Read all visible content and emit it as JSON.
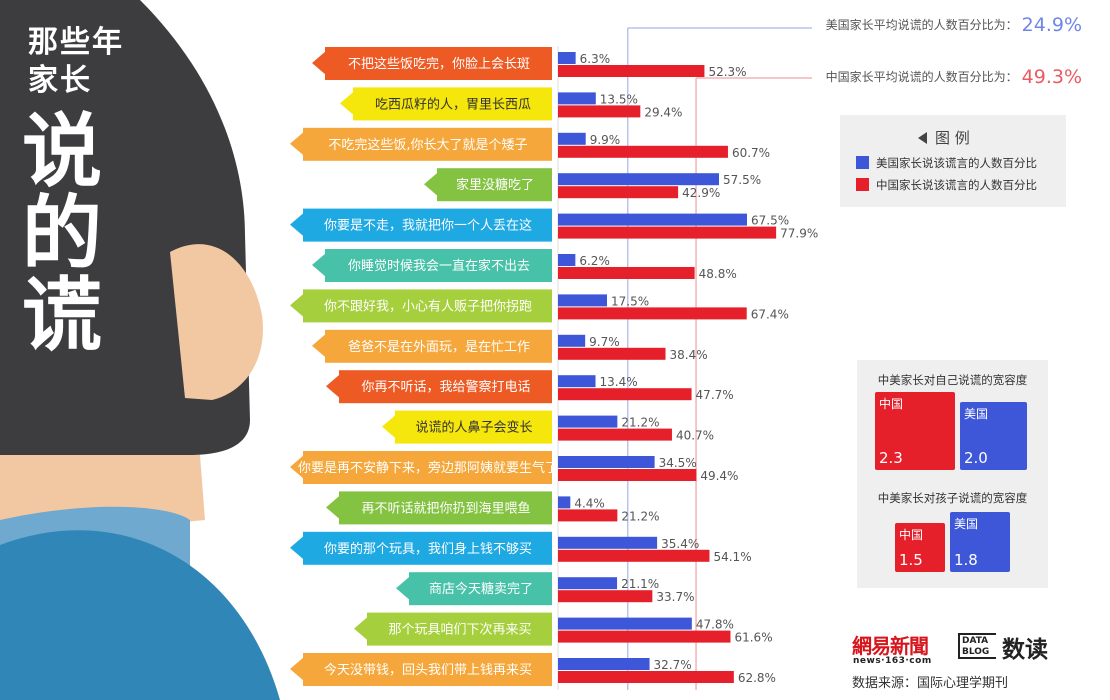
{
  "title": {
    "line1": "那些年",
    "line2": "家长",
    "big1": "说",
    "big2": "的",
    "big3": "谎"
  },
  "averages": {
    "us_label": "美国家长平均说谎的人数百分比为：",
    "us_value": "24.9%",
    "cn_label": "中国家长平均说谎的人数百分比为：",
    "cn_value": "49.3%"
  },
  "legend": {
    "title": "图 例",
    "us": "美国家长说该谎言的人数百分比",
    "cn": "中国家长说该谎言的人数百分比"
  },
  "tolerance": {
    "self_title": "中美家长对自己说谎的宽容度",
    "self": [
      {
        "name": "中国",
        "value": "2.3"
      },
      {
        "name": "美国",
        "value": "2.0"
      }
    ],
    "child_title": "中美家长对孩子说谎的宽容度",
    "child": [
      {
        "name": "中国",
        "value": "1.5"
      },
      {
        "name": "美国",
        "value": "1.8"
      }
    ]
  },
  "branding": {
    "netease": "網易新聞",
    "netease_url": "news·163·com",
    "datablog": "DATA BLOG",
    "shudu": "数读",
    "source": "数据来源：国际心理学期刊"
  },
  "colors": {
    "us": "#3d57d8",
    "cn": "#e5202a",
    "us_avg_line": "#b9c3f0",
    "cn_avg_line": "#f4b3b5",
    "background_dark": "#3d3d3f",
    "skin": "#f2c8a3",
    "shirt": "#2f86b7"
  },
  "chart_data": {
    "type": "bar",
    "orientation": "horizontal",
    "unit": "%",
    "categories": [
      "不把这些饭吃完，你脸上会长斑",
      "吃西瓜籽的人，胃里长西瓜",
      "不吃完这些饭,你长大了就是个矮子",
      "家里没糖吃了",
      "你要是不走，我就把你一个人丢在这",
      "你睡觉时候我会一直在家不出去",
      "你不跟好我，小心有人贩子把你拐跑",
      "爸爸不是在外面玩，是在忙工作",
      "你再不听话，我给警察打电话",
      "说谎的人鼻子会变长",
      "你要是再不安静下来，旁边那阿姨就要生气了",
      "再不听话就把你扔到海里喂鱼",
      "你要的那个玩具，我们身上钱不够买",
      "商店今天糖卖完了",
      "那个玩具咱们下次再来买",
      "今天没带钱，回头我们带上钱再来买"
    ],
    "label_colors": [
      "#ee5a24",
      "#f5e60b",
      "#f6a73b",
      "#84c341",
      "#1fa9e3",
      "#47c2a9",
      "#a6cf3d",
      "#f6a73b",
      "#ee5a24",
      "#f5e60b",
      "#f6a73b",
      "#84c341",
      "#1fa9e3",
      "#47c2a9",
      "#a6cf3d",
      "#f6a73b"
    ],
    "series": [
      {
        "name": "美国家长说该谎言的人数百分比",
        "values": [
          6.3,
          13.5,
          9.9,
          57.5,
          67.5,
          6.2,
          17.5,
          9.7,
          13.4,
          21.2,
          34.5,
          4.4,
          35.4,
          21.1,
          47.8,
          32.7
        ]
      },
      {
        "name": "中国家长说该谎言的人数百分比",
        "values": [
          52.3,
          29.4,
          60.7,
          42.9,
          77.9,
          48.8,
          67.4,
          38.4,
          47.7,
          40.7,
          49.4,
          21.2,
          54.1,
          33.7,
          61.6,
          62.8
        ]
      }
    ],
    "reference_lines": [
      {
        "name": "美国家长平均说谎的人数百分比",
        "value": 24.9
      },
      {
        "name": "中国家长平均说谎的人数百分比",
        "value": 49.3
      }
    ],
    "xlim": [
      0,
      100
    ]
  }
}
